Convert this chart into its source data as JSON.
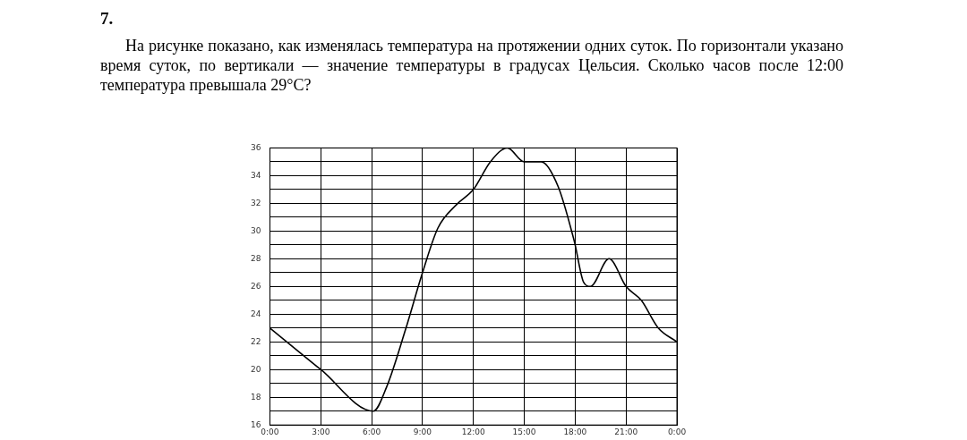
{
  "chart_data": {
    "type": "line",
    "title": "7.",
    "subtitle": "На рисунке показано, как изменялась температура на протяжении одних суток. По горизонтали указано время суток, по вертикали — значение температуры в градусах Цельсия. Сколько часов после 12:00 температура превышала 29°C?",
    "x": [
      0,
      3,
      6.1,
      6.9,
      8,
      9,
      9.9,
      11,
      12,
      13,
      14,
      15,
      16,
      17,
      17.9,
      18,
      18.5,
      18.9,
      20,
      21,
      21.9,
      22.9,
      24
    ],
    "series": [
      {
        "color": "#000000",
        "values": [
          23,
          20,
          17,
          18.8,
          22.9,
          27,
          30.2,
          31.9,
          33,
          35,
          36,
          35,
          35,
          33.2,
          29.5,
          29,
          26.3,
          26,
          28,
          26,
          25,
          23,
          22
        ]
      }
    ],
    "xlim": [
      0,
      24
    ],
    "xticks": [
      {
        "value": 0,
        "label": "0:00"
      },
      {
        "value": 3,
        "label": "3:00"
      },
      {
        "value": 6,
        "label": "6:00"
      },
      {
        "value": 9,
        "label": "9:00"
      },
      {
        "value": 12,
        "label": "12:00"
      },
      {
        "value": 15,
        "label": "15:00"
      },
      {
        "value": 18,
        "label": "18:00"
      },
      {
        "value": 21,
        "label": "21:00"
      },
      {
        "value": 24,
        "label": "0:00"
      }
    ],
    "ylim": [
      16,
      36
    ],
    "yticks": [
      16,
      {
        "value": 17,
        "label": null
      },
      18,
      {
        "value": 19,
        "label": null
      },
      20,
      {
        "value": 21,
        "label": null
      },
      22,
      {
        "value": 23,
        "label": null
      },
      24,
      {
        "value": 25,
        "label": null
      },
      26,
      {
        "value": 27,
        "label": null
      },
      28,
      {
        "value": 29,
        "label": null
      },
      30,
      {
        "value": 31,
        "label": null
      },
      32,
      {
        "value": 33,
        "label": null
      },
      34,
      {
        "value": 35,
        "label": null
      },
      36
    ],
    "grid": true,
    "legend": false,
    "marker": "none",
    "line_style": "solid"
  }
}
